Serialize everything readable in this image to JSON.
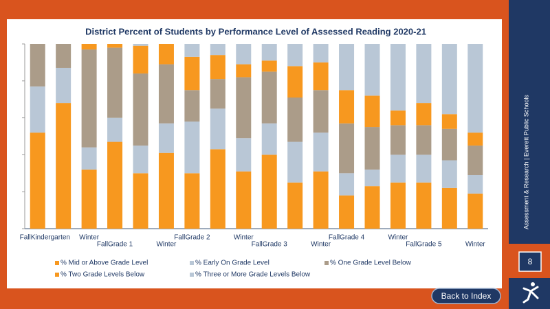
{
  "chart_data": {
    "type": "stacked_bar",
    "title": "District Percent of Students by Performance Level of Assessed Reading 2020-21",
    "categories": [
      "Fall",
      "Kindergarten",
      "Winter",
      "Fall",
      "Grade 1",
      "Winter",
      "Fall",
      "Grade 2",
      "Winter",
      "Fall",
      "Grade 3",
      "Winter",
      "Fall",
      "Grade 4",
      "Winter",
      "Fall",
      "Grade 5",
      "Winter"
    ],
    "series": [
      {
        "name": "% Mid or Above Grade Level",
        "color": "#f7981f",
        "values": [
          52,
          68,
          32,
          47,
          30,
          41,
          30,
          43,
          31,
          40,
          25,
          31,
          18,
          23,
          25,
          25,
          22,
          19
        ]
      },
      {
        "name": "% Early On Grade Level",
        "color": "#b9c7d6",
        "values": [
          25,
          19,
          12,
          13,
          15,
          16,
          28,
          22,
          18,
          17,
          22,
          21,
          12,
          9,
          15,
          15,
          15,
          10
        ]
      },
      {
        "name": "% One Grade Level Below",
        "color": "#ab9c89",
        "values": [
          23,
          13,
          53,
          38,
          39,
          32,
          17,
          16,
          33,
          28,
          24,
          23,
          27,
          23,
          16,
          16,
          17,
          16
        ]
      },
      {
        "name": "% Two Grade Levels Below",
        "color": "#f7981f",
        "values": [
          0,
          0,
          3,
          2,
          15,
          11,
          18,
          13,
          7,
          6,
          17,
          15,
          18,
          17,
          8,
          12,
          8,
          7
        ]
      },
      {
        "name": "% Three or More Grade Levels Below",
        "color": "#b9c7d6",
        "values": [
          0,
          0,
          0,
          0,
          1,
          0,
          7,
          6,
          11,
          9,
          12,
          10,
          25,
          28,
          36,
          32,
          38,
          48
        ]
      }
    ],
    "ylim": [
      0,
      100
    ],
    "yticks": [
      0,
      20,
      40,
      60,
      80,
      100
    ]
  },
  "sidebar": "Assessment & Research | Everett Public Schools",
  "page_number": "8",
  "button": "Back to Index"
}
